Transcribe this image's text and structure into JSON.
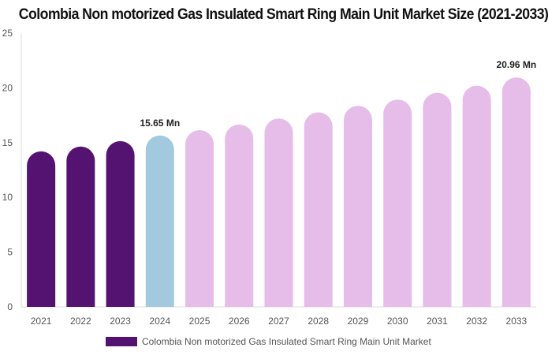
{
  "chart_data": {
    "type": "bar",
    "title": "Colombia Non motorized Gas Insulated Smart Ring Main Unit Market Size (2021-2033)",
    "categories": [
      "2021",
      "2022",
      "2023",
      "2024",
      "2025",
      "2026",
      "2027",
      "2028",
      "2029",
      "2030",
      "2031",
      "2032",
      "2033"
    ],
    "series": [
      {
        "name": "Colombia Non motorized Gas Insulated Smart Ring Main Unit Market",
        "values": [
          14.2,
          14.64,
          15.14,
          15.65,
          16.14,
          16.65,
          17.2,
          17.77,
          18.36,
          18.93,
          19.55,
          20.2,
          20.96
        ]
      }
    ],
    "data_labels": {
      "3": "15.65 Mn",
      "12": "20.96 Mn"
    },
    "ylim": [
      0,
      25
    ],
    "yticks": [
      0,
      5,
      10,
      15,
      20,
      25
    ],
    "grid": false,
    "legend": "bottom",
    "colors": {
      "historical": "#541271",
      "base_year": "#a3c9de",
      "forecast": "#e6bde8"
    }
  }
}
